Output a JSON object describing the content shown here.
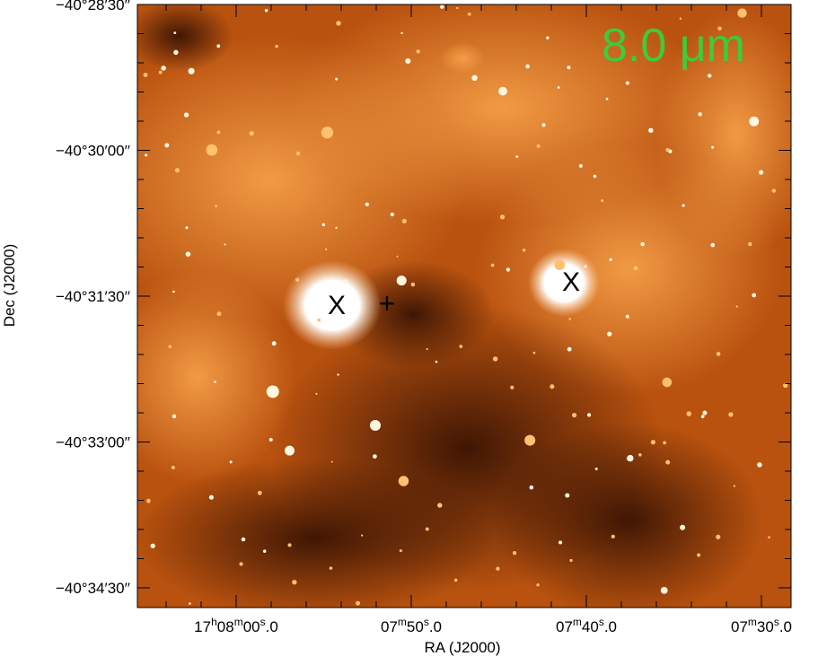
{
  "image": {
    "band_label": "8.0 μm",
    "x_axis_label": "RA (J2000)",
    "y_axis_label": "Dec (J2000)",
    "x_ticks": [
      [
        {
          "text": "17"
        },
        {
          "sup": "h"
        },
        {
          "text": "08"
        },
        {
          "sup": "m"
        },
        {
          "text": "00"
        },
        {
          "sup": "s"
        },
        {
          "text": ".0"
        }
      ],
      [
        {
          "text": "07"
        },
        {
          "sup": "m"
        },
        {
          "text": "50"
        },
        {
          "sup": "s"
        },
        {
          "text": ".0"
        }
      ],
      [
        {
          "text": "07"
        },
        {
          "sup": "m"
        },
        {
          "text": "40"
        },
        {
          "sup": "s"
        },
        {
          "text": ".0"
        }
      ],
      [
        {
          "text": "07"
        },
        {
          "sup": "m"
        },
        {
          "text": "30"
        },
        {
          "sup": "s"
        },
        {
          "text": ".0"
        }
      ]
    ],
    "y_ticks": [
      "−40°28′30′′",
      "−40°30′00′′",
      "−40°31′30′′",
      "−40°33′00′′",
      "−40°34′30′′"
    ],
    "markers": [
      "X",
      "+",
      "X"
    ]
  }
}
